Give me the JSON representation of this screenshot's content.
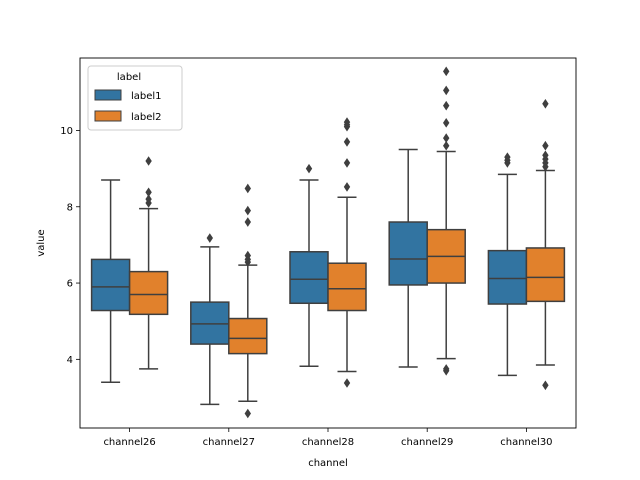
{
  "chart_data": {
    "type": "box",
    "xlabel": "channel",
    "ylabel": "value",
    "ylim": [
      2.2,
      11.9
    ],
    "yticks": [
      4,
      6,
      8,
      10
    ],
    "categories": [
      "channel26",
      "channel27",
      "channel28",
      "channel29",
      "channel30"
    ],
    "legend": {
      "title": "label",
      "position": "upper-left"
    },
    "series": [
      {
        "name": "label1",
        "color": "#3274a1",
        "boxes": [
          {
            "whisker_low": 3.4,
            "q1": 5.28,
            "median": 5.9,
            "q3": 6.62,
            "whisker_high": 8.7,
            "outliers": []
          },
          {
            "whisker_low": 2.82,
            "q1": 4.4,
            "median": 4.93,
            "q3": 5.5,
            "whisker_high": 6.95,
            "outliers": [
              7.18
            ]
          },
          {
            "whisker_low": 3.82,
            "q1": 5.47,
            "median": 6.1,
            "q3": 6.82,
            "whisker_high": 8.7,
            "outliers": [
              9.0
            ]
          },
          {
            "whisker_low": 3.8,
            "q1": 5.95,
            "median": 6.63,
            "q3": 7.6,
            "whisker_high": 9.5,
            "outliers": []
          },
          {
            "whisker_low": 3.58,
            "q1": 5.45,
            "median": 6.12,
            "q3": 6.85,
            "whisker_high": 8.85,
            "outliers": [
              9.15,
              9.22,
              9.3
            ]
          }
        ]
      },
      {
        "name": "label2",
        "color": "#e1812c",
        "boxes": [
          {
            "whisker_low": 3.75,
            "q1": 5.18,
            "median": 5.7,
            "q3": 6.3,
            "whisker_high": 7.95,
            "outliers": [
              8.1,
              8.2,
              8.38,
              9.2
            ]
          },
          {
            "whisker_low": 2.9,
            "q1": 4.15,
            "median": 4.55,
            "q3": 5.07,
            "whisker_high": 6.47,
            "outliers": [
              2.58,
              6.55,
              6.62,
              6.72,
              7.6,
              7.9,
              8.48
            ]
          },
          {
            "whisker_low": 3.68,
            "q1": 5.28,
            "median": 5.85,
            "q3": 6.52,
            "whisker_high": 8.25,
            "outliers": [
              3.38,
              8.52,
              9.15,
              9.7,
              10.1,
              10.15,
              10.22
            ]
          },
          {
            "whisker_low": 4.02,
            "q1": 6.0,
            "median": 6.7,
            "q3": 7.4,
            "whisker_high": 9.45,
            "outliers": [
              3.7,
              3.75,
              9.6,
              9.8,
              10.2,
              10.65,
              11.05,
              11.55
            ]
          },
          {
            "whisker_low": 3.85,
            "q1": 5.52,
            "median": 6.15,
            "q3": 6.92,
            "whisker_high": 8.95,
            "outliers": [
              3.32,
              9.05,
              9.15,
              9.25,
              9.35,
              9.6,
              10.7
            ]
          }
        ]
      }
    ]
  }
}
